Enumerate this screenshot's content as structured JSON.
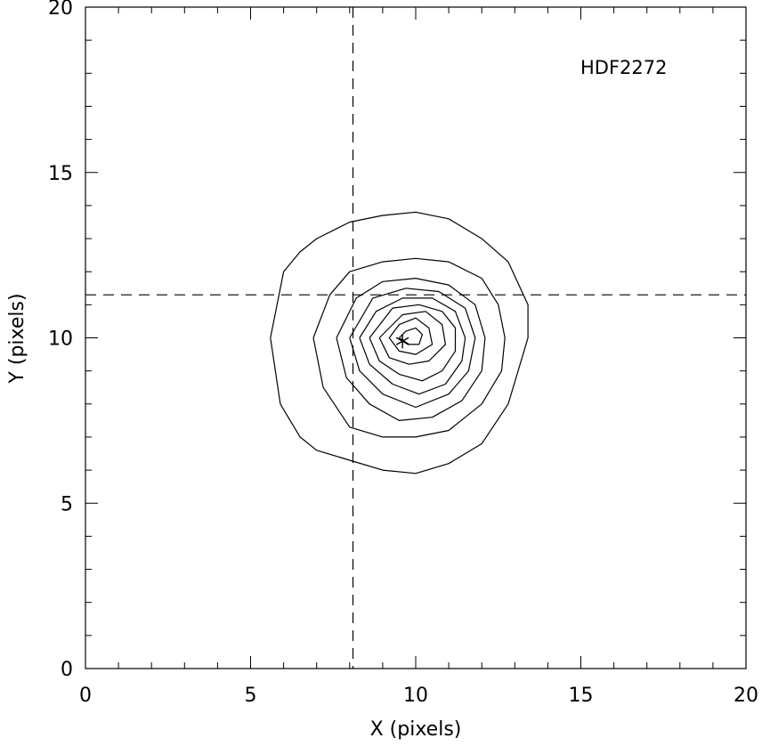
{
  "chart_data": {
    "type": "contour",
    "title": "",
    "annotation": "HDF2272",
    "xlabel": "X (pixels)",
    "ylabel": "Y (pixels)",
    "xlim": [
      0,
      20
    ],
    "ylim": [
      0,
      20
    ],
    "xticks": [
      "0",
      "5",
      "10",
      "15",
      "20"
    ],
    "yticks": [
      "0",
      "5",
      "10",
      "15",
      "20"
    ],
    "grid": false,
    "line_color": "#000000",
    "reference_lines": {
      "vertical_x": 8.1,
      "horizontal_y": 11.3,
      "style": "dashed"
    },
    "center_marker": {
      "x": 9.6,
      "y": 9.9,
      "symbol": "asterisk"
    },
    "contours": [
      {
        "level": 1,
        "points": [
          [
            5.6,
            10
          ],
          [
            5.9,
            8
          ],
          [
            6.5,
            7
          ],
          [
            7,
            6.6
          ],
          [
            8,
            6.3
          ],
          [
            9,
            6
          ],
          [
            10,
            5.9
          ],
          [
            11,
            6.2
          ],
          [
            12,
            6.8
          ],
          [
            12.8,
            8
          ],
          [
            13.4,
            10
          ],
          [
            13.4,
            11
          ],
          [
            12.8,
            12.3
          ],
          [
            12,
            13
          ],
          [
            11,
            13.6
          ],
          [
            10,
            13.8
          ],
          [
            9,
            13.7
          ],
          [
            8,
            13.5
          ],
          [
            7,
            13
          ],
          [
            6.5,
            12.6
          ],
          [
            6,
            12
          ],
          [
            5.6,
            10
          ]
        ]
      },
      {
        "level": 2,
        "points": [
          [
            6.9,
            10
          ],
          [
            7.2,
            8.5
          ],
          [
            8,
            7.3
          ],
          [
            9,
            7
          ],
          [
            10,
            7
          ],
          [
            11,
            7.2
          ],
          [
            12,
            8
          ],
          [
            12.6,
            9
          ],
          [
            12.7,
            10
          ],
          [
            12.5,
            11
          ],
          [
            12,
            11.8
          ],
          [
            11,
            12.3
          ],
          [
            10,
            12.4
          ],
          [
            9,
            12.3
          ],
          [
            8,
            12
          ],
          [
            7.4,
            11.3
          ],
          [
            6.9,
            10
          ]
        ]
      },
      {
        "level": 3,
        "points": [
          [
            7.6,
            10
          ],
          [
            7.9,
            8.8
          ],
          [
            8.6,
            8
          ],
          [
            9.5,
            7.5
          ],
          [
            10.5,
            7.6
          ],
          [
            11.4,
            8.1
          ],
          [
            12,
            9
          ],
          [
            12.1,
            10
          ],
          [
            11.8,
            11
          ],
          [
            11,
            11.6
          ],
          [
            10,
            11.8
          ],
          [
            9,
            11.7
          ],
          [
            8.2,
            11.2
          ],
          [
            7.6,
            10
          ]
        ]
      },
      {
        "level": 4,
        "points": [
          [
            8.0,
            10
          ],
          [
            8.3,
            9
          ],
          [
            9,
            8.3
          ],
          [
            10,
            7.9
          ],
          [
            11,
            8.3
          ],
          [
            11.6,
            9
          ],
          [
            11.8,
            10
          ],
          [
            11.5,
            10.9
          ],
          [
            10.7,
            11.4
          ],
          [
            9.7,
            11.5
          ],
          [
            8.7,
            11.2
          ],
          [
            8.0,
            10
          ]
        ]
      },
      {
        "level": 5,
        "points": [
          [
            8.3,
            10
          ],
          [
            8.6,
            9.2
          ],
          [
            9.3,
            8.6
          ],
          [
            10.1,
            8.3
          ],
          [
            10.9,
            8.6
          ],
          [
            11.4,
            9.3
          ],
          [
            11.5,
            10
          ],
          [
            11.2,
            10.8
          ],
          [
            10.5,
            11.2
          ],
          [
            9.6,
            11.2
          ],
          [
            8.8,
            10.8
          ],
          [
            8.3,
            10
          ]
        ]
      },
      {
        "level": 6,
        "points": [
          [
            8.6,
            10
          ],
          [
            8.9,
            9.3
          ],
          [
            9.5,
            8.9
          ],
          [
            10.2,
            8.7
          ],
          [
            10.8,
            9
          ],
          [
            11.2,
            9.6
          ],
          [
            11.2,
            10.3
          ],
          [
            10.8,
            10.8
          ],
          [
            10.1,
            11
          ],
          [
            9.3,
            10.9
          ],
          [
            8.6,
            10
          ]
        ]
      },
      {
        "level": 7,
        "points": [
          [
            8.9,
            10
          ],
          [
            9.2,
            9.4
          ],
          [
            9.8,
            9.2
          ],
          [
            10.4,
            9.3
          ],
          [
            10.9,
            9.8
          ],
          [
            10.8,
            10.4
          ],
          [
            10.3,
            10.8
          ],
          [
            9.6,
            10.7
          ],
          [
            8.9,
            10
          ]
        ]
      },
      {
        "level": 8,
        "points": [
          [
            9.2,
            10
          ],
          [
            9.5,
            9.6
          ],
          [
            10,
            9.5
          ],
          [
            10.5,
            9.8
          ],
          [
            10.4,
            10.3
          ],
          [
            10,
            10.6
          ],
          [
            9.5,
            10.4
          ],
          [
            9.2,
            10
          ]
        ]
      },
      {
        "level": 9,
        "points": [
          [
            9.5,
            10
          ],
          [
            9.8,
            9.8
          ],
          [
            10.1,
            9.8
          ],
          [
            10.2,
            10.1
          ],
          [
            10,
            10.3
          ],
          [
            9.7,
            10.2
          ],
          [
            9.5,
            10
          ]
        ]
      }
    ]
  }
}
